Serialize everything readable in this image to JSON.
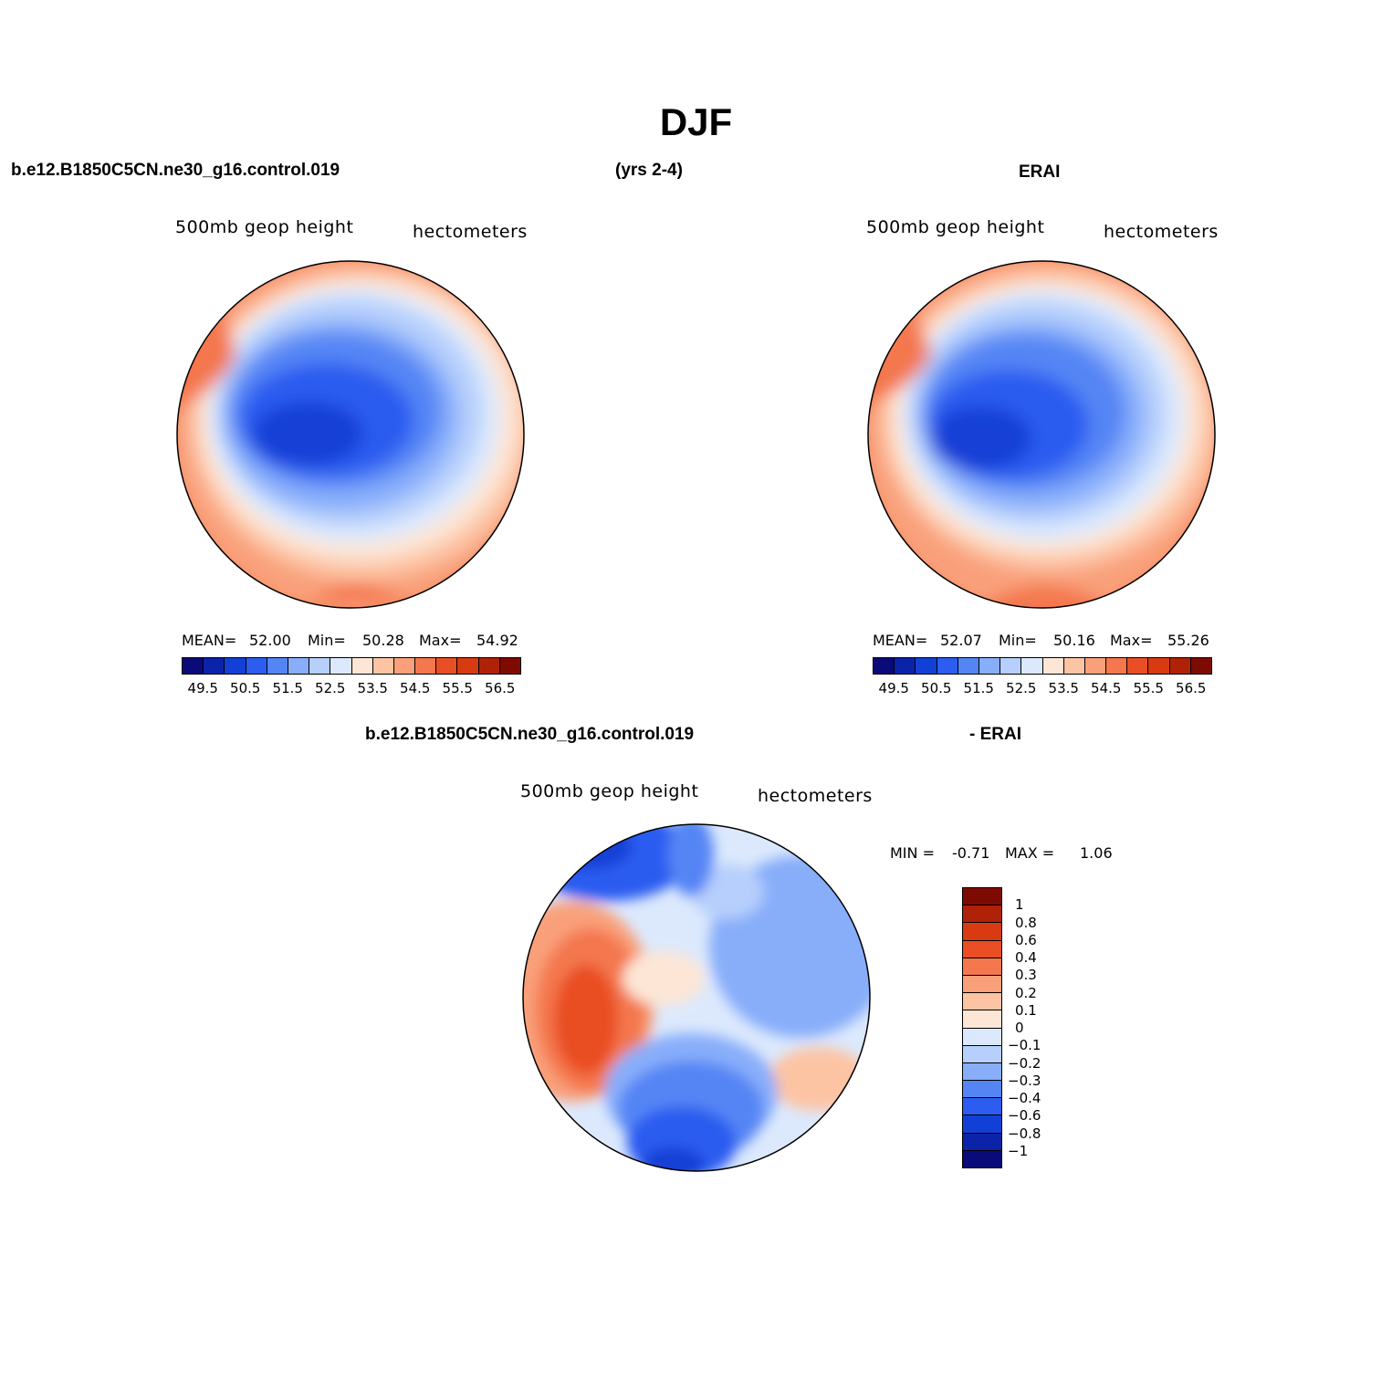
{
  "figure": {
    "season_title": "DJF",
    "case_label": "b.e12.B1850C5CN.ne30_g16.control.019",
    "years_label": "(yrs 2-4)",
    "obs_label": "ERAI",
    "diff_case_label": "b.e12.B1850C5CN.ne30_g16.control.019",
    "diff_obs_label": "- ERAI"
  },
  "panels": {
    "model": {
      "variable": "500mb geop height",
      "units": "hectometers",
      "mean_label": "MEAN=",
      "mean_value": "52.00",
      "min_label": "Min=",
      "min_value": "50.28",
      "max_label": "Max=",
      "max_value": "54.92"
    },
    "obs": {
      "variable": "500mb geop height",
      "units": "hectometers",
      "mean_label": "MEAN=",
      "mean_value": "52.07",
      "min_label": "Min=",
      "min_value": "50.16",
      "max_label": "Max=",
      "max_value": "55.26"
    },
    "diff": {
      "variable": "500mb geop height",
      "units": "hectometers",
      "min_label": "MIN =",
      "min_value": "-0.71",
      "max_label": "MAX =",
      "max_value": "1.06"
    }
  },
  "colorbar_main": {
    "tick_labels": [
      "49.5",
      "50.5",
      "51.5",
      "52.5",
      "53.5",
      "54.5",
      "55.5",
      "56.5"
    ],
    "colors": [
      "#0a0a78",
      "#0b23a8",
      "#1240d6",
      "#2c5cf0",
      "#5585f5",
      "#88aefa",
      "#b6cffc",
      "#dce9fd",
      "#fde6d6",
      "#fdc4a4",
      "#f9a07a",
      "#f4774d",
      "#e94e24",
      "#d83a12",
      "#b02208",
      "#7e0b02"
    ]
  },
  "colorbar_diff": {
    "tick_labels": [
      "-1",
      "-0.8",
      "-0.6",
      "-0.4",
      "-0.3",
      "-0.2",
      "-0.1",
      "0",
      "0.1",
      "0.2",
      "0.3",
      "0.4",
      "0.6",
      "0.8",
      "1"
    ],
    "colors": [
      "#0a0a78",
      "#0b23a8",
      "#1240d6",
      "#2c5cf0",
      "#5585f5",
      "#88aefa",
      "#b6cffc",
      "#dce9fd",
      "#fde6d6",
      "#fdc4a4",
      "#f9a07a",
      "#f4774d",
      "#e94e24",
      "#d83a12",
      "#b02208",
      "#7e0b02"
    ]
  }
}
